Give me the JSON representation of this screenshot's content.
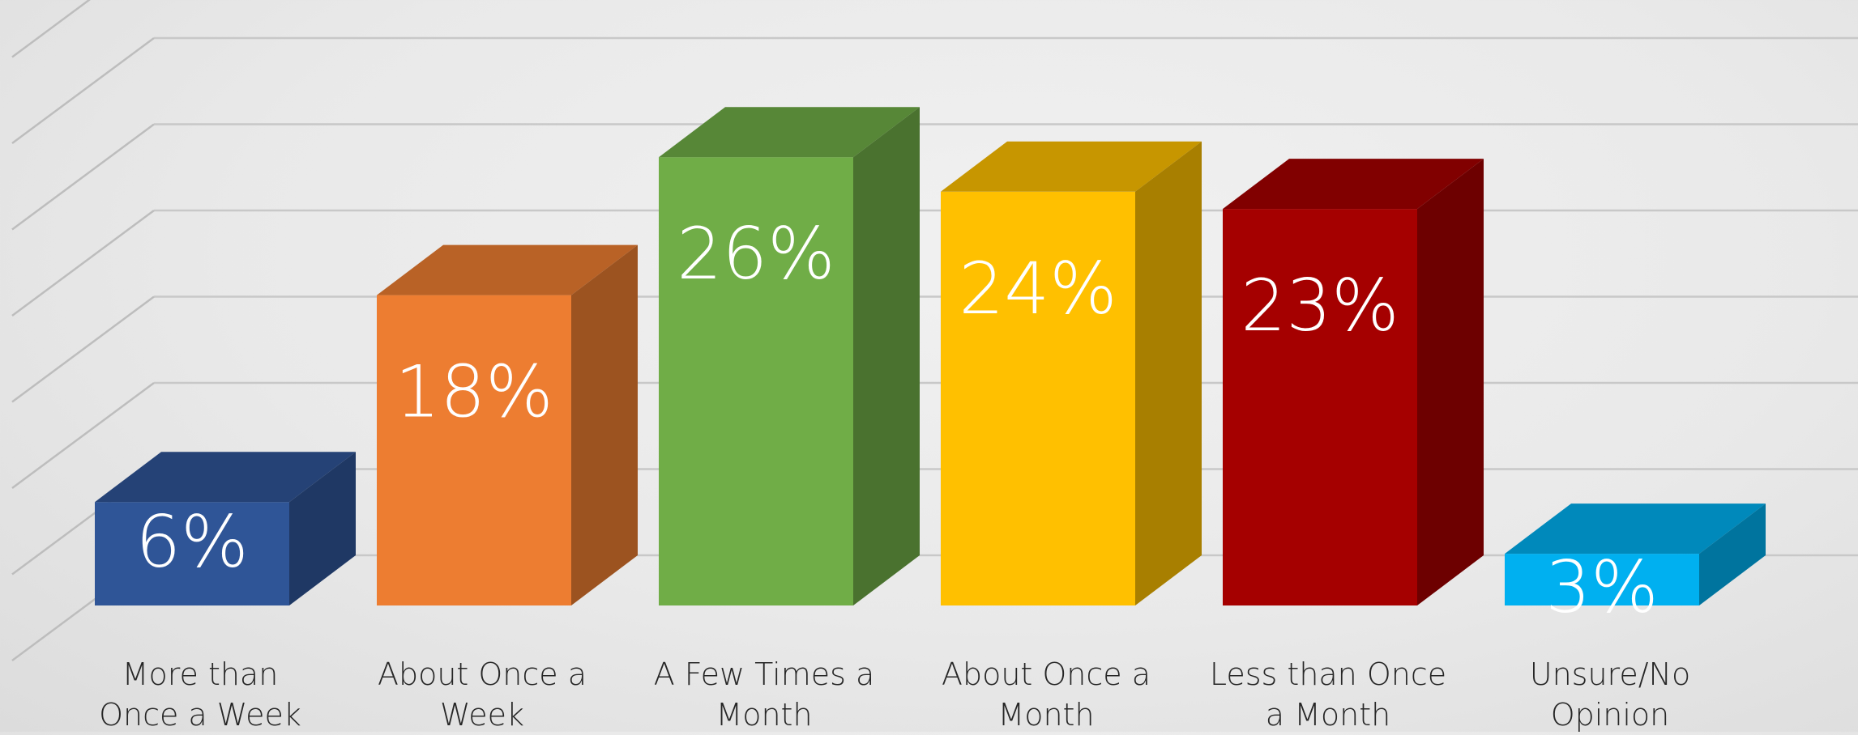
{
  "chart_data": {
    "type": "bar",
    "categories": [
      "More than\nOnce a Week",
      "About Once a\nWeek",
      "A Few Times a\nMonth",
      "About Once a\nMonth",
      "Less than Once\na Month",
      "Unsure/No\nOpinion"
    ],
    "values": [
      6,
      18,
      26,
      24,
      23,
      3
    ],
    "value_labels": [
      "6%",
      "18%",
      "26%",
      "24%",
      "23%",
      "3%"
    ],
    "ylim": [
      0,
      35
    ],
    "grid": true,
    "legend": "none",
    "colors": [
      "#2f5597",
      "#ed7d31",
      "#70ad47",
      "#ffc000",
      "#a50000",
      "#00b0f0"
    ]
  }
}
